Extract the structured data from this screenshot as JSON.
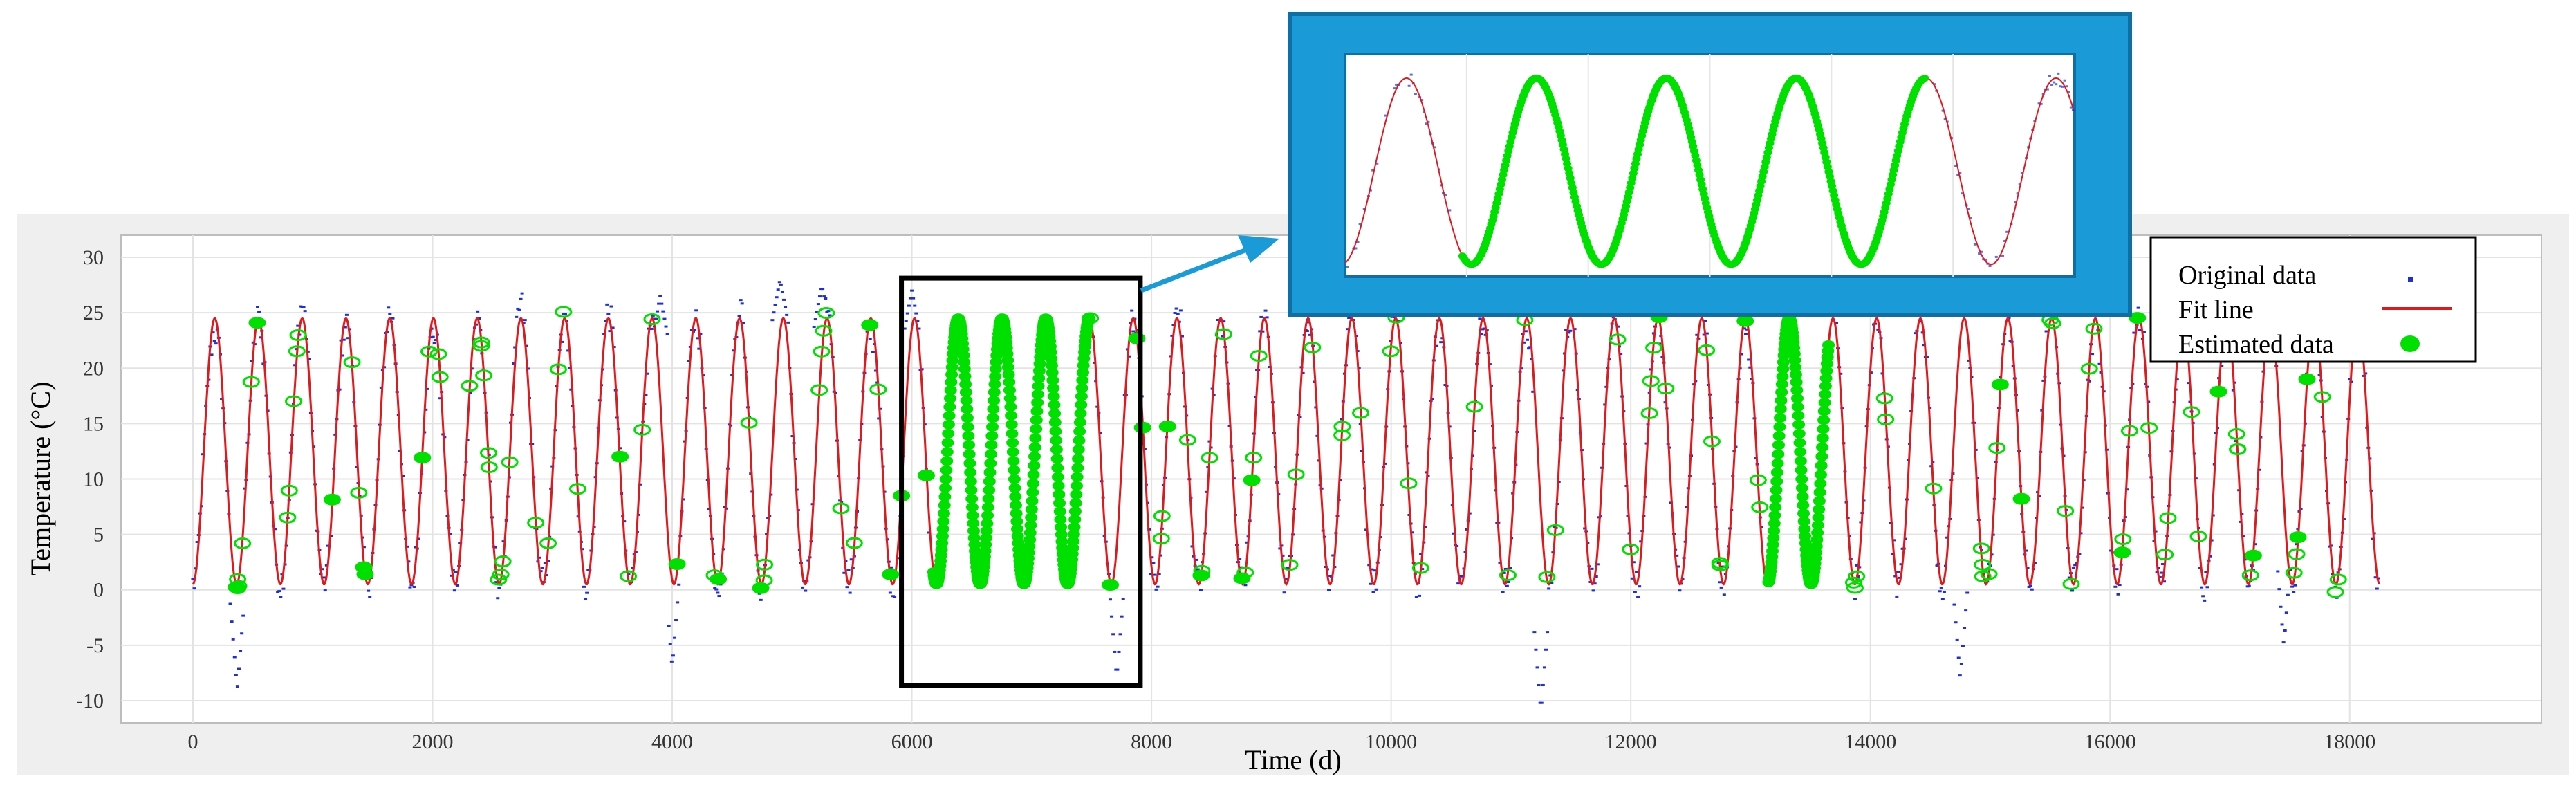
{
  "chart_data": {
    "type": "scatter",
    "title": "",
    "xlabel": "Time (d)",
    "ylabel": "Temperature (°C)",
    "xlim": [
      -600,
      19600
    ],
    "ylim": [
      -12,
      32
    ],
    "xticks": [
      0,
      2000,
      4000,
      6000,
      8000,
      10000,
      12000,
      14000,
      16000,
      18000
    ],
    "yticks": [
      -10,
      -5,
      0,
      5,
      10,
      15,
      20,
      25,
      30
    ],
    "grid": true,
    "period_days": 365,
    "mean_temperature": 12.5,
    "amplitude": 12,
    "legend_position": "top-right",
    "series": [
      {
        "name": "Original data",
        "kind": "points",
        "color": "#1f2fd6",
        "x_range": [
          0,
          18250
        ],
        "gap_ranges": [
          [
            6150,
            7500
          ],
          [
            13100,
            13700
          ]
        ],
        "troughs": [
          {
            "x": 370,
            "y": -9
          },
          {
            "x": 4000,
            "y": -7
          },
          {
            "x": 11250,
            "y": -11
          },
          {
            "x": 14750,
            "y": -8
          },
          {
            "x": 17450,
            "y": -5
          },
          {
            "x": 7710,
            "y": -8
          }
        ],
        "peaks": [
          {
            "x": 3900,
            "y": 26.5
          },
          {
            "x": 4900,
            "y": 28
          },
          {
            "x": 5250,
            "y": 27.5
          },
          {
            "x": 6000,
            "y": 27
          }
        ]
      },
      {
        "name": "Fit line",
        "kind": "line",
        "color": "#e0191c",
        "x_range": [
          0,
          18250
        ],
        "min": 0.5,
        "max": 24.5
      },
      {
        "name": "Estimated data",
        "kind": "markers",
        "color": "#00e000",
        "dense_segments": [
          [
            6180,
            7480
          ],
          [
            13150,
            13650
          ]
        ],
        "min": 0.5,
        "max": 25
      }
    ],
    "annotations": [
      {
        "type": "highlight-box",
        "x_range": [
          6000,
          7820
        ],
        "y_range": [
          -8,
          27.5
        ],
        "color": "#000000"
      },
      {
        "type": "zoom-inset",
        "frame_color": "#1a9bd7",
        "shows": "gap filled by estimated data"
      }
    ]
  }
}
